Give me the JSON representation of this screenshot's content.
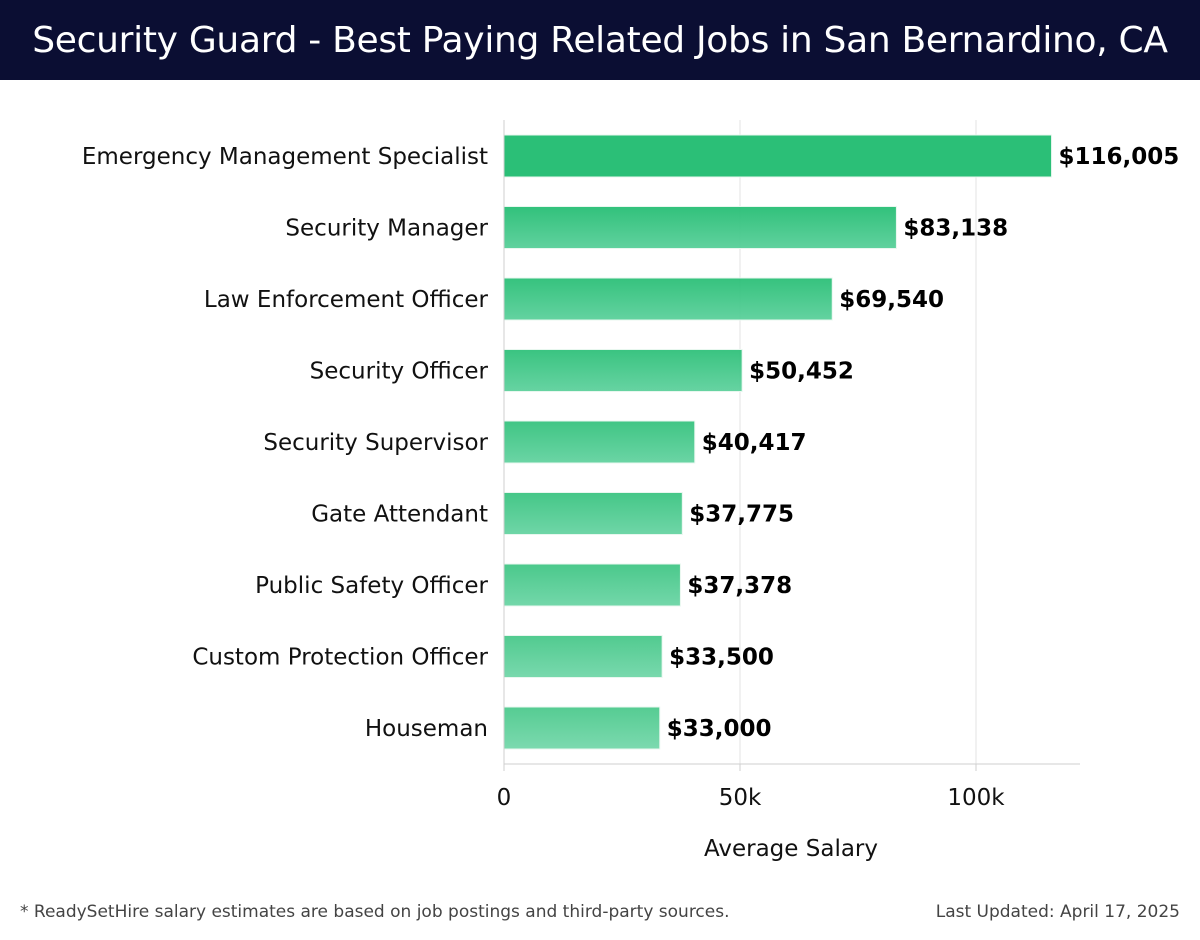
{
  "title": "Security Guard - Best Paying Related Jobs in San Bernardino, CA",
  "footnote": "* ReadySetHire salary estimates are based on job postings and third-party sources.",
  "last_updated": "Last Updated: April 17, 2025",
  "colors": {
    "header_bg": "#0b0e33",
    "bar_top": "#2bbf77",
    "bar_bottom": "#5bd09b"
  },
  "chart_data": {
    "type": "bar",
    "orientation": "horizontal",
    "title": "Security Guard - Best Paying Related Jobs in San Bernardino, CA",
    "xlabel": "Average Salary",
    "ylabel": "",
    "xlim": [
      0,
      122000
    ],
    "x_ticks": [
      0,
      50000,
      100000
    ],
    "x_tick_labels": [
      "0",
      "50k",
      "100k"
    ],
    "grid": true,
    "categories": [
      "Emergency Management Specialist",
      "Security Manager",
      "Law Enforcement Officer",
      "Security Officer",
      "Security Supervisor",
      "Gate Attendant",
      "Public Safety Officer",
      "Custom Protection Officer",
      "Houseman"
    ],
    "values": [
      116005,
      83138,
      69540,
      50452,
      40417,
      37775,
      37378,
      33500,
      33000
    ],
    "value_labels": [
      "$116,005",
      "$83,138",
      "$69,540",
      "$50,452",
      "$40,417",
      "$37,775",
      "$37,378",
      "$33,500",
      "$33,000"
    ]
  }
}
